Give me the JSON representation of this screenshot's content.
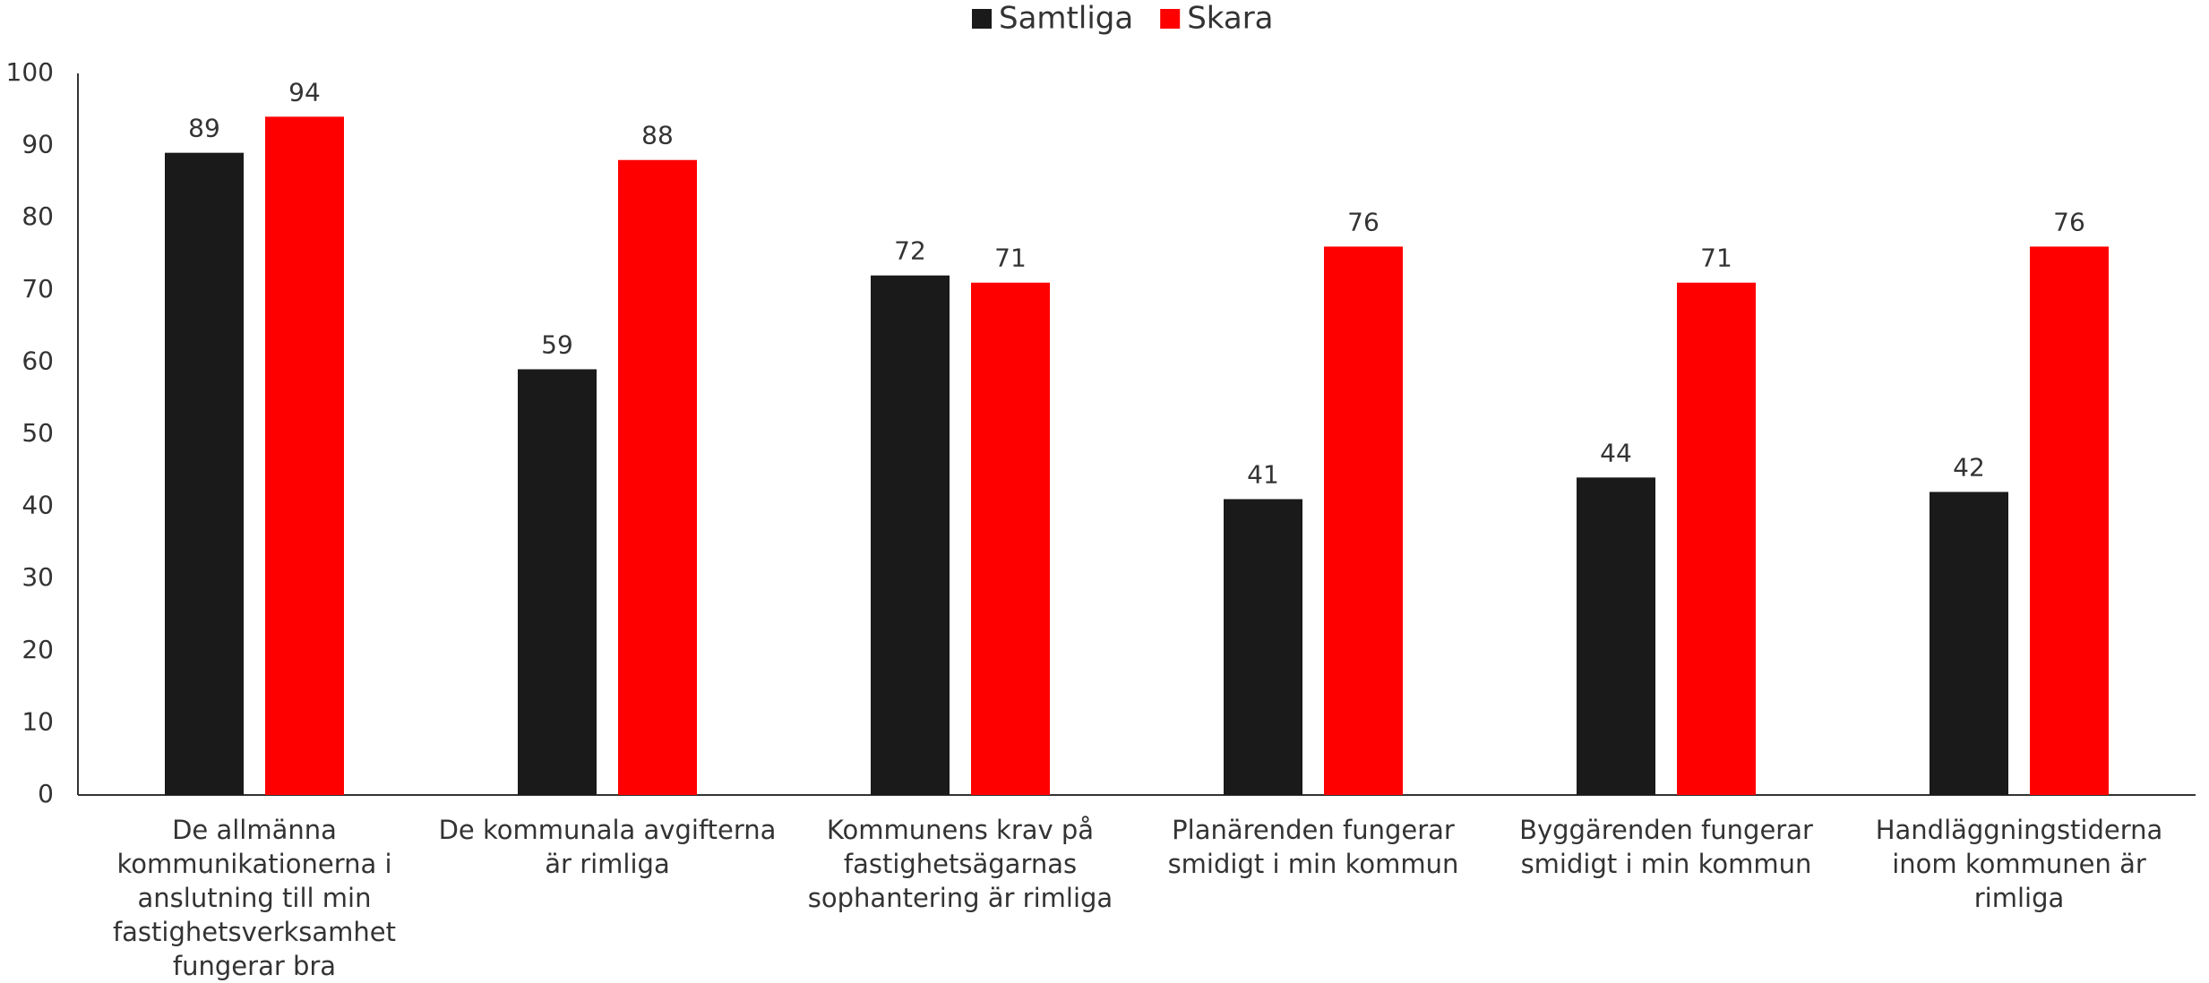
{
  "chart_data": {
    "type": "bar",
    "categories": [
      "De allmänna kommunikationerna i anslutning till min fastighetsverksamhet fungerar bra",
      "De kommunala avgifterna är rimliga",
      "Kommunens krav på fastighetsägarnas sophantering är rimliga",
      "Planärenden fungerar smidigt i min kommun",
      "Byggärenden fungerar smidigt i min kommun",
      "Handläggningstiderna inom kommunen är rimliga"
    ],
    "series": [
      {
        "name": "Samtliga",
        "color": "#1a1a1a",
        "values": [
          89,
          59,
          72,
          41,
          44,
          42
        ]
      },
      {
        "name": "Skara",
        "color": "#ff0000",
        "values": [
          94,
          88,
          71,
          76,
          71,
          76
        ]
      }
    ],
    "ylim": [
      0,
      100
    ],
    "yticks": [
      0,
      10,
      20,
      30,
      40,
      50,
      60,
      70,
      80,
      90,
      100
    ],
    "grid": false,
    "legend": "top"
  }
}
